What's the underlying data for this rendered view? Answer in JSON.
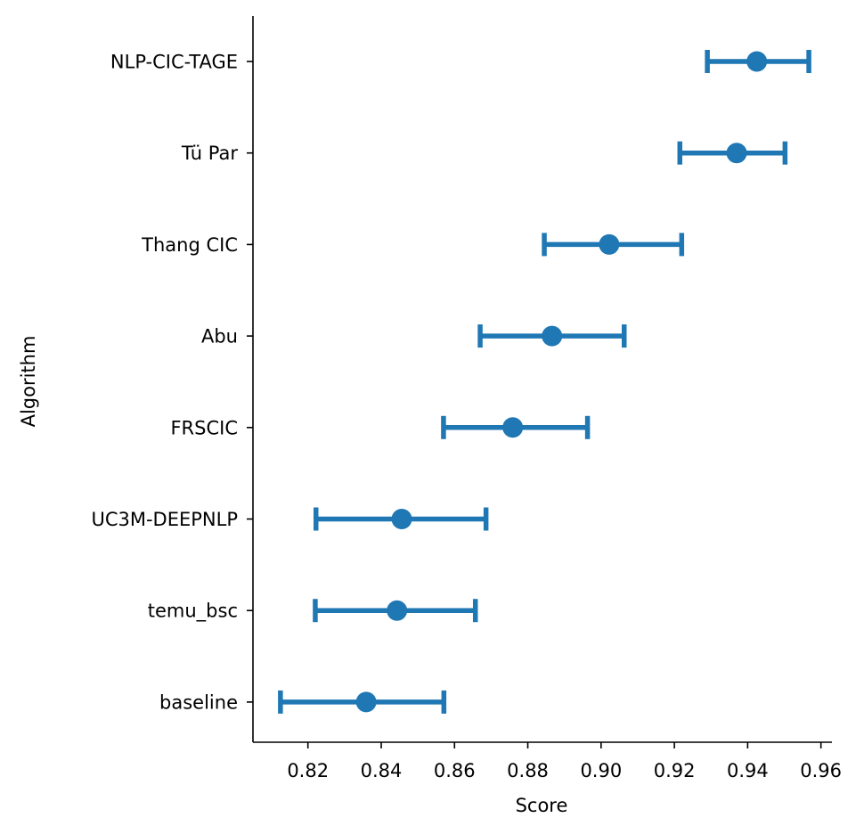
{
  "chart_data": {
    "type": "scatter",
    "variant": "point-with-error-bars",
    "title": "",
    "xlabel": "Score",
    "ylabel": "Algorithm",
    "xlim": [
      0.805,
      0.963
    ],
    "xticks": [
      0.82,
      0.84,
      0.86,
      0.88,
      0.9,
      0.92,
      0.94,
      0.96
    ],
    "xtick_labels": [
      "0.82",
      "0.84",
      "0.86",
      "0.88",
      "0.90",
      "0.92",
      "0.94",
      "0.96"
    ],
    "categories": [
      "NLP-CIC-TAGE",
      "Tü Par",
      "Thang CIC",
      "Abu",
      "FRSCIC",
      "UC3M-DEEPNLP",
      "temu_bsc",
      "baseline"
    ],
    "values": [
      0.9425,
      0.937,
      0.9022,
      0.8866,
      0.8759,
      0.8456,
      0.8443,
      0.8359
    ],
    "lower": [
      0.929,
      0.9215,
      0.8845,
      0.867,
      0.857,
      0.8222,
      0.822,
      0.8125
    ],
    "upper": [
      0.9567,
      0.9502,
      0.922,
      0.9063,
      0.8963,
      0.8686,
      0.8657,
      0.8571
    ],
    "color": "#1f77b4",
    "grid": false
  }
}
